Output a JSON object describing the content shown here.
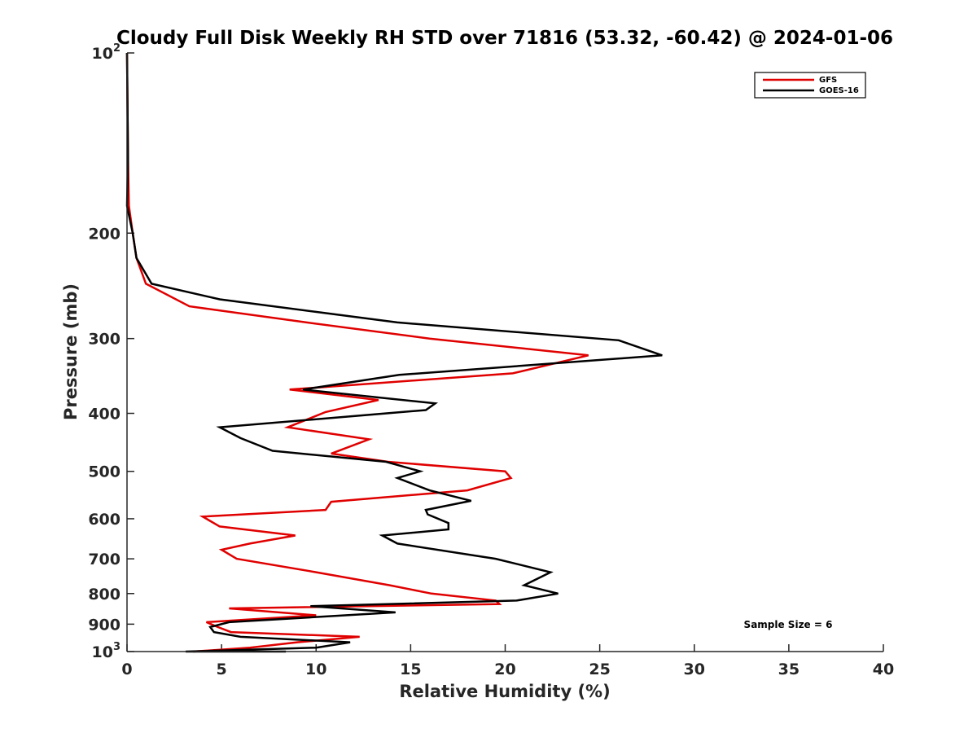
{
  "chart_data": {
    "type": "line",
    "title": "Cloudy Full Disk Weekly RH STD over 71816 (53.32, -60.42) @ 2024-01-06",
    "xlabel": "Relative Humidity (%)",
    "ylabel": "Pressure (mb)",
    "xlim": [
      0,
      40
    ],
    "ylim": [
      100,
      1000
    ],
    "y_scale": "log",
    "y_reversed": true,
    "x_ticks": [
      "0",
      "5",
      "10",
      "15",
      "20",
      "25",
      "30",
      "35",
      "40"
    ],
    "y_ticks": [
      {
        "value": 100,
        "base": "10",
        "sup": "2"
      },
      {
        "value": 200,
        "label": "200"
      },
      {
        "value": 300,
        "label": "300"
      },
      {
        "value": 400,
        "label": "400"
      },
      {
        "value": 500,
        "label": "500"
      },
      {
        "value": 600,
        "label": "600"
      },
      {
        "value": 700,
        "label": "700"
      },
      {
        "value": 800,
        "label": "800"
      },
      {
        "value": 900,
        "label": "900"
      },
      {
        "value": 1000,
        "base": "10",
        "sup": "3"
      }
    ],
    "grid": false,
    "legend_position": "top-right",
    "annotation": "Sample Size = 6",
    "series": [
      {
        "name": "GFS",
        "color": "#e00000",
        "points": [
          [
            0,
            100
          ],
          [
            0.05,
            150
          ],
          [
            0.1,
            180
          ],
          [
            0.3,
            200
          ],
          [
            0.5,
            220
          ],
          [
            1.0,
            243
          ],
          [
            3.3,
            265
          ],
          [
            9.5,
            282
          ],
          [
            16.0,
            300
          ],
          [
            24.4,
            320
          ],
          [
            20.4,
            343
          ],
          [
            8.6,
            365
          ],
          [
            13.3,
            380
          ],
          [
            10.5,
            398
          ],
          [
            8.5,
            422
          ],
          [
            12.8,
            442
          ],
          [
            10.8,
            467
          ],
          [
            13.8,
            482
          ],
          [
            20.0,
            500
          ],
          [
            20.3,
            513
          ],
          [
            18.0,
            538
          ],
          [
            10.8,
            562
          ],
          [
            10.5,
            580
          ],
          [
            4.0,
            595
          ],
          [
            4.9,
            618
          ],
          [
            8.9,
            640
          ],
          [
            6.5,
            660
          ],
          [
            5.0,
            676
          ],
          [
            5.8,
            700
          ],
          [
            10.0,
            737
          ],
          [
            13.9,
            775
          ],
          [
            16.1,
            800
          ],
          [
            19.5,
            822
          ],
          [
            19.7,
            833
          ],
          [
            5.4,
            847
          ],
          [
            10.0,
            870
          ],
          [
            4.2,
            893
          ],
          [
            4.8,
            910
          ],
          [
            5.5,
            928
          ],
          [
            12.3,
            945
          ],
          [
            9.0,
            965
          ],
          [
            6.5,
            985
          ],
          [
            3.5,
            1000
          ]
        ]
      },
      {
        "name": "GOES-16",
        "color": "#000000",
        "points": [
          [
            0,
            100
          ],
          [
            0.05,
            150
          ],
          [
            0,
            180
          ],
          [
            0.3,
            200
          ],
          [
            0.5,
            220
          ],
          [
            1.3,
            243
          ],
          [
            4.9,
            258
          ],
          [
            14.3,
            282
          ],
          [
            26.0,
            302
          ],
          [
            28.3,
            320
          ],
          [
            14.4,
            345
          ],
          [
            9.3,
            365
          ],
          [
            16.3,
            385
          ],
          [
            15.8,
            395
          ],
          [
            4.9,
            422
          ],
          [
            6.0,
            440
          ],
          [
            7.7,
            462
          ],
          [
            13.7,
            482
          ],
          [
            15.5,
            500
          ],
          [
            14.3,
            513
          ],
          [
            16.0,
            538
          ],
          [
            18.2,
            560
          ],
          [
            15.8,
            580
          ],
          [
            15.9,
            590
          ],
          [
            17.0,
            610
          ],
          [
            17.0,
            625
          ],
          [
            13.5,
            640
          ],
          [
            14.3,
            660
          ],
          [
            19.5,
            700
          ],
          [
            22.4,
            737
          ],
          [
            21.0,
            775
          ],
          [
            22.8,
            800
          ],
          [
            20.6,
            822
          ],
          [
            9.7,
            840
          ],
          [
            14.2,
            860
          ],
          [
            5.4,
            893
          ],
          [
            4.4,
            910
          ],
          [
            4.6,
            928
          ],
          [
            6.0,
            945
          ],
          [
            11.8,
            965
          ],
          [
            10.0,
            985
          ],
          [
            3.1,
            1000
          ],
          [
            8.4,
            1000
          ]
        ]
      }
    ]
  }
}
